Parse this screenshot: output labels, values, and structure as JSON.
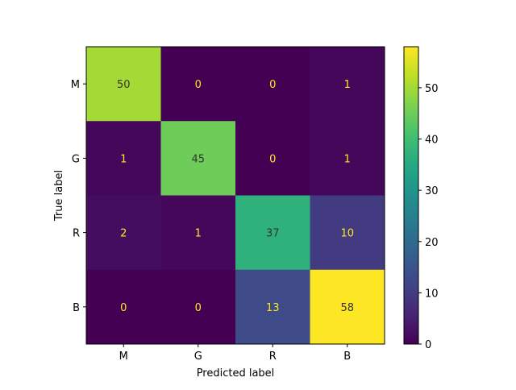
{
  "chart_data": {
    "type": "heatmap",
    "title": "",
    "xlabel": "Predicted label",
    "ylabel": "True label",
    "x_categories": [
      "M",
      "G",
      "R",
      "B"
    ],
    "y_categories": [
      "M",
      "G",
      "R",
      "B"
    ],
    "values": [
      [
        50,
        0,
        0,
        1
      ],
      [
        1,
        45,
        0,
        1
      ],
      [
        2,
        1,
        37,
        10
      ],
      [
        0,
        0,
        13,
        58
      ]
    ],
    "colormap": "viridis",
    "vmin": 0,
    "vmax": 58,
    "colorbar_ticks": [
      0,
      10,
      20,
      30,
      40,
      50
    ],
    "text_color_dark_cells": "#fde725",
    "text_color_light_cells": "#333333"
  }
}
